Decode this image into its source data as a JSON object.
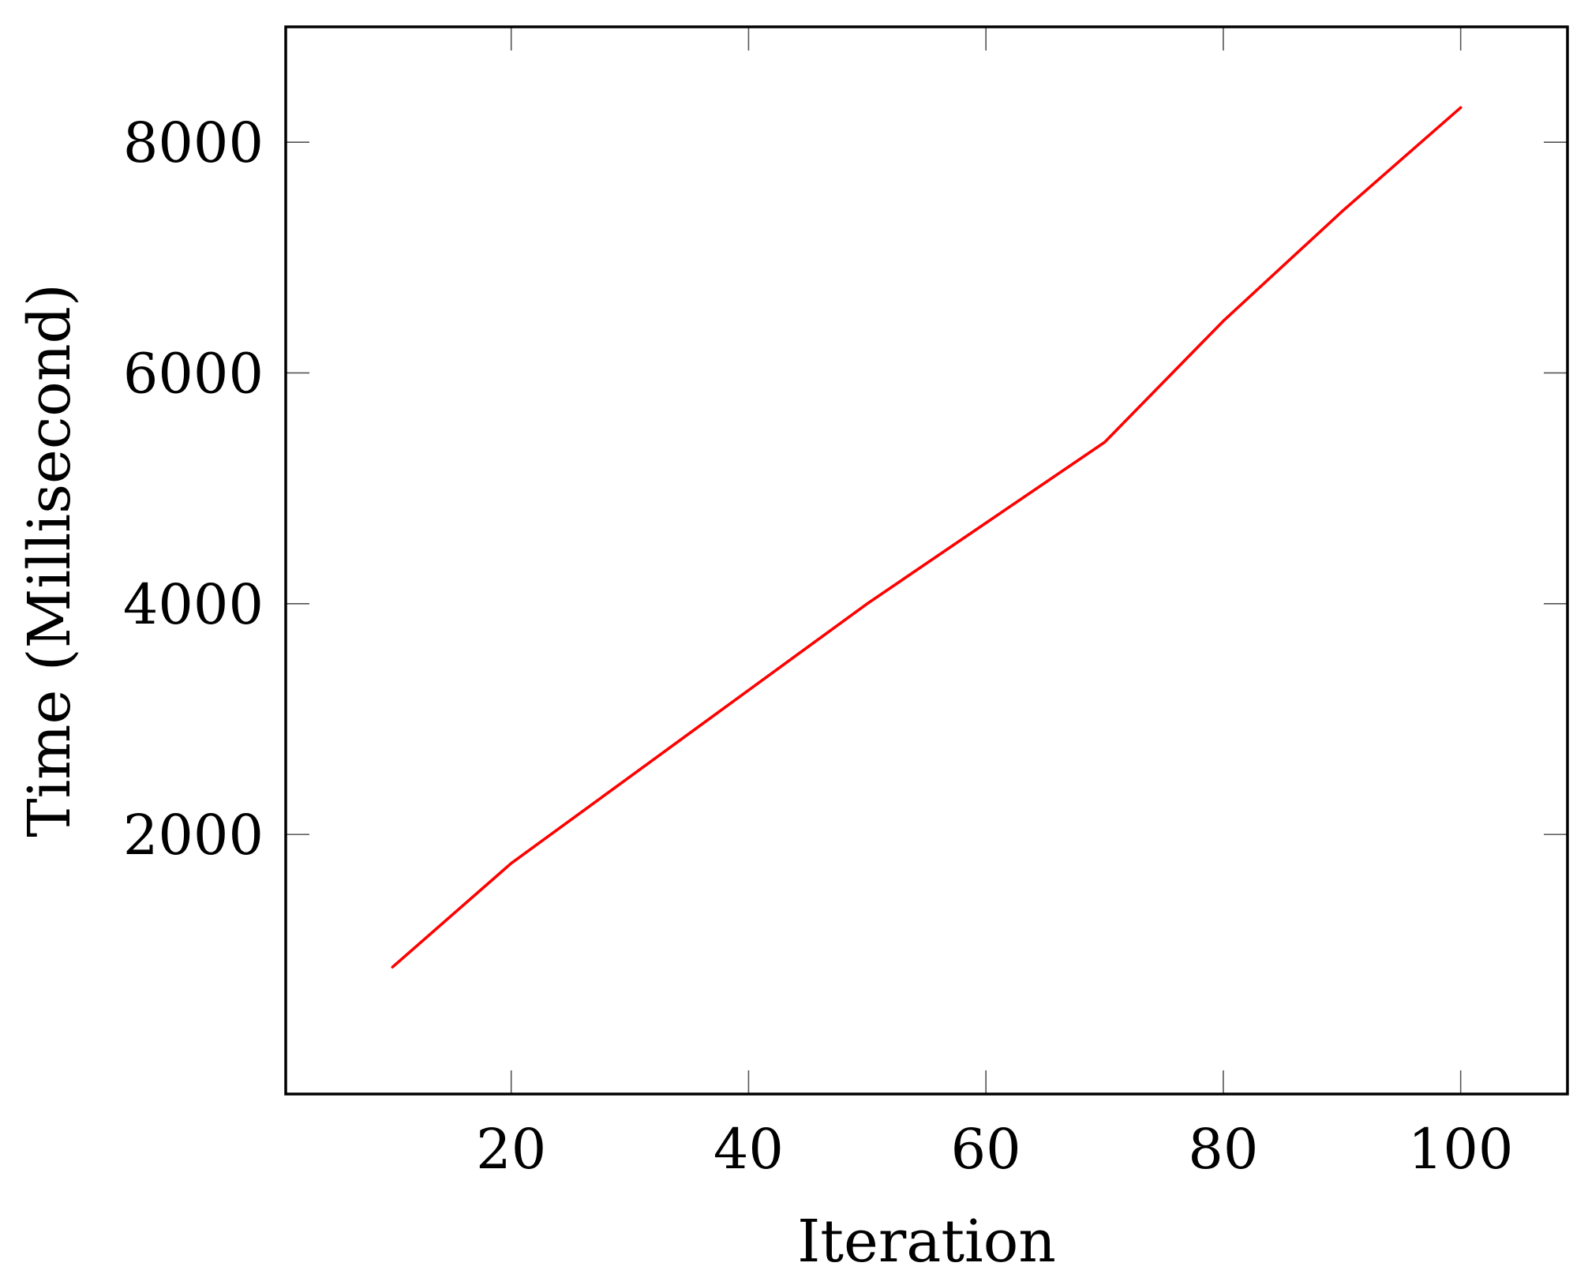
{
  "chart_data": {
    "type": "line",
    "title": "",
    "xlabel": "Iteration",
    "ylabel": "Time (Millisecond)",
    "xlim": [
      1,
      109
    ],
    "ylim": [
      -250,
      9000
    ],
    "x_ticks": [
      20,
      40,
      60,
      80,
      100
    ],
    "y_ticks": [
      2000,
      4000,
      6000,
      8000
    ],
    "grid": false,
    "legend": "none",
    "series": [
      {
        "color": "#ff0000",
        "x": [
          10,
          20,
          30,
          40,
          50,
          60,
          70,
          80,
          90,
          100
        ],
        "y": [
          850,
          1750,
          2500,
          3250,
          4000,
          4700,
          5400,
          6450,
          7400,
          8300
        ]
      }
    ]
  }
}
